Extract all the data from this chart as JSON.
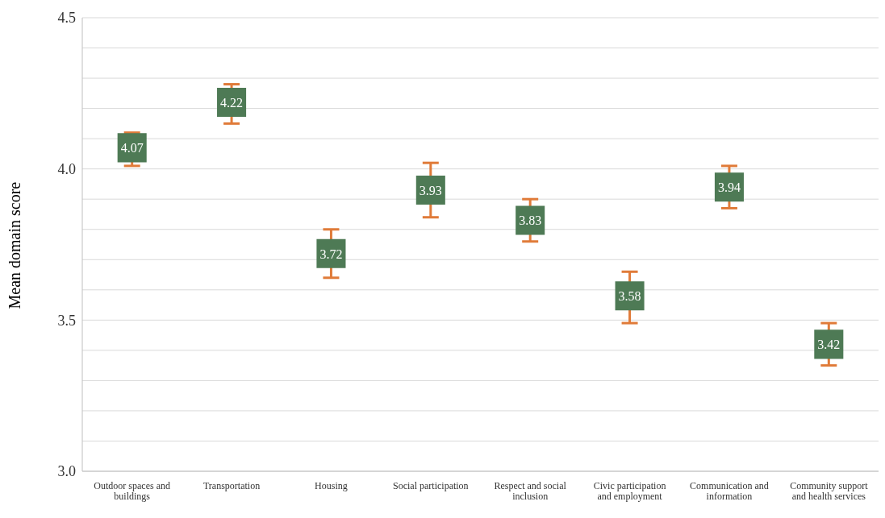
{
  "chart_data": {
    "type": "scatter",
    "ylabel": "Mean domain score",
    "categories": [
      "Outdoor spaces and buildings",
      "Transportation",
      "Housing",
      "Social participation",
      "Respect and social inclusion",
      "Civic participation and employment",
      "Communication and information",
      "Community support and health services"
    ],
    "values": [
      4.07,
      4.22,
      3.72,
      3.93,
      3.83,
      3.58,
      3.94,
      3.42
    ],
    "errors": [
      [
        4.01,
        4.12
      ],
      [
        4.15,
        4.28
      ],
      [
        3.64,
        3.8
      ],
      [
        3.84,
        4.02
      ],
      [
        3.76,
        3.9
      ],
      [
        3.49,
        3.66
      ],
      [
        3.87,
        4.01
      ],
      [
        3.35,
        3.49
      ]
    ],
    "color": "#4e7a55",
    "marker": "square",
    "data_labels": true,
    "ylim": [
      3.0,
      4.5
    ],
    "yticks": [
      {
        "value": 3.0,
        "label": "3.0"
      },
      {
        "value": 3.1,
        "label": null
      },
      {
        "value": 3.2,
        "label": null
      },
      {
        "value": 3.3,
        "label": null
      },
      {
        "value": 3.4,
        "label": null
      },
      {
        "value": 3.5,
        "label": "3.5"
      },
      {
        "value": 3.6,
        "label": null
      },
      {
        "value": 3.7,
        "label": null
      },
      {
        "value": 3.8,
        "label": null
      },
      {
        "value": 3.9,
        "label": null
      },
      {
        "value": 4.0,
        "label": "4.0"
      },
      {
        "value": 4.1,
        "label": null
      },
      {
        "value": 4.2,
        "label": null
      },
      {
        "value": 4.3,
        "label": null
      },
      {
        "value": 4.4,
        "label": null
      },
      {
        "value": 4.5,
        "label": "4.5"
      }
    ],
    "grid": "y"
  }
}
